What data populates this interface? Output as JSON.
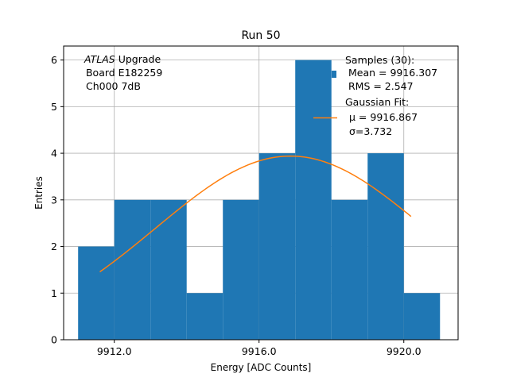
{
  "chart_data": {
    "type": "bar",
    "title": "Run 50",
    "xlabel": "Energy [ADC Counts]",
    "ylabel": "Entries",
    "xlim": [
      9910.6,
      9921.5
    ],
    "ylim": [
      0,
      6.3
    ],
    "xticks": [
      {
        "value": 9912.0,
        "label": "9912.0"
      },
      {
        "value": 9916.0,
        "label": "9916.0"
      },
      {
        "value": 9920.0,
        "label": "9920.0"
      }
    ],
    "yticks": [
      {
        "value": 0,
        "label": "0"
      },
      {
        "value": 1,
        "label": "1"
      },
      {
        "value": 2,
        "label": "2"
      },
      {
        "value": 3,
        "label": "3"
      },
      {
        "value": 4,
        "label": "4"
      },
      {
        "value": 5,
        "label": "5"
      },
      {
        "value": 6,
        "label": "6"
      }
    ],
    "grid": true,
    "bar_color": "#1f77b4",
    "fit_color": "#ff7f0e",
    "bins": [
      {
        "x0": 9911.0,
        "x1": 9912.0,
        "count": 2
      },
      {
        "x0": 9912.0,
        "x1": 9913.0,
        "count": 3
      },
      {
        "x0": 9913.0,
        "x1": 9914.0,
        "count": 3
      },
      {
        "x0": 9914.0,
        "x1": 9915.0,
        "count": 1
      },
      {
        "x0": 9915.0,
        "x1": 9916.0,
        "count": 3
      },
      {
        "x0": 9916.0,
        "x1": 9917.0,
        "count": 4
      },
      {
        "x0": 9917.0,
        "x1": 9918.0,
        "count": 6
      },
      {
        "x0": 9918.0,
        "x1": 9919.0,
        "count": 3
      },
      {
        "x0": 9919.0,
        "x1": 9920.0,
        "count": 4
      },
      {
        "x0": 9920.0,
        "x1": 9921.0,
        "count": 1
      }
    ],
    "fit": {
      "mu": 9916.867,
      "sigma": 3.732,
      "amplitude": 3.94,
      "x_start": 9911.6,
      "x_end": 9920.2
    },
    "annotation": {
      "italic": "ATLAS",
      "line1_rest": " Upgrade",
      "line2": " Board E182259",
      "line3": " Ch000 7dB"
    },
    "legend": {
      "position": "top-right",
      "samples_title": "Samples (30):",
      "mean": " Mean = 9916.307",
      "rms": " RMS = 2.547",
      "fit_title": "Gaussian Fit:",
      "mu_label": "μ = 9916.867",
      "sigma_label": "σ=3.732"
    }
  }
}
